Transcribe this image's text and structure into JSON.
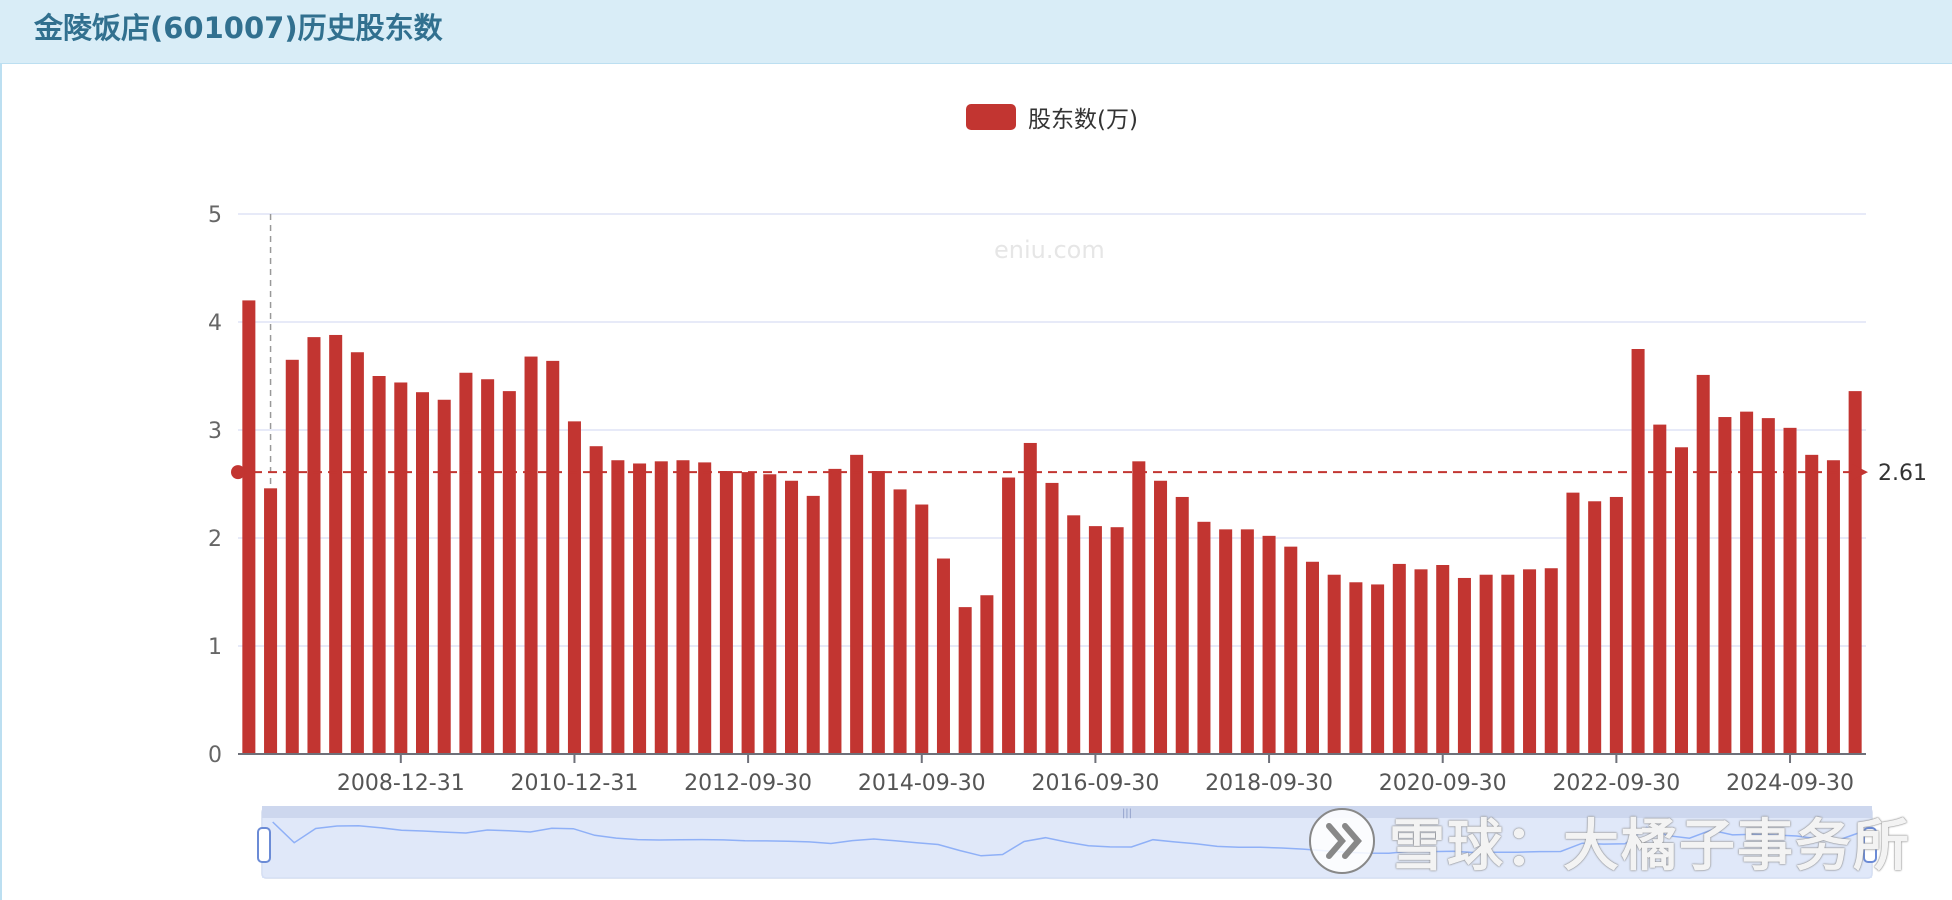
{
  "header": {
    "title": "金陵饭店(601007)历史股东数"
  },
  "legend": {
    "label": "股东数(万)"
  },
  "watermark": "eniu.com",
  "brand": {
    "text": "雪球：大橘子事务所",
    "icon": "xueqiu-logo-icon"
  },
  "colors": {
    "bar": "#c23531",
    "header_bg": "#d9edf7",
    "header_text": "#31708f",
    "grid": "#dfe3f6",
    "zoom_fill": "#d6e0f7"
  },
  "chart_data": {
    "type": "bar",
    "ylim": [
      0,
      5
    ],
    "y_ticks": [
      0,
      1,
      2,
      3,
      4,
      5
    ],
    "x_tick_labels": [
      "2008-12-31",
      "2010-12-31",
      "2012-09-30",
      "2014-09-30",
      "2016-09-30",
      "2018-09-30",
      "2020-09-30",
      "2022-09-30",
      "2024-09-30"
    ],
    "x_tick_label_bar_index": [
      7,
      15,
      23,
      31,
      39,
      47,
      55,
      63,
      71
    ],
    "grid": true,
    "legend_position": "top-center",
    "series": [
      {
        "name": "股东数(万)",
        "values": [
          4.2,
          2.46,
          3.65,
          3.86,
          3.88,
          3.72,
          3.5,
          3.44,
          3.35,
          3.28,
          3.53,
          3.47,
          3.36,
          3.68,
          3.64,
          3.08,
          2.85,
          2.72,
          2.69,
          2.71,
          2.72,
          2.7,
          2.62,
          2.61,
          2.59,
          2.53,
          2.39,
          2.64,
          2.77,
          2.62,
          2.45,
          2.31,
          1.81,
          1.36,
          1.47,
          2.56,
          2.88,
          2.51,
          2.21,
          2.11,
          2.1,
          2.71,
          2.53,
          2.38,
          2.15,
          2.08,
          2.08,
          2.02,
          1.92,
          1.78,
          1.66,
          1.59,
          1.57,
          1.76,
          1.71,
          1.75,
          1.63,
          1.66,
          1.66,
          1.71,
          1.72,
          2.42,
          2.34,
          2.38,
          3.75,
          3.05,
          2.84,
          3.51,
          3.12,
          3.17,
          3.11,
          3.02,
          2.77,
          2.72,
          3.36
        ]
      }
    ],
    "mark_line": {
      "type": "average",
      "value": 2.61,
      "label": "2.61"
    },
    "tooltip_pointer_bar_index": 1,
    "datazoom": {
      "start_fraction": 0.0,
      "end_fraction": 1.0
    }
  }
}
